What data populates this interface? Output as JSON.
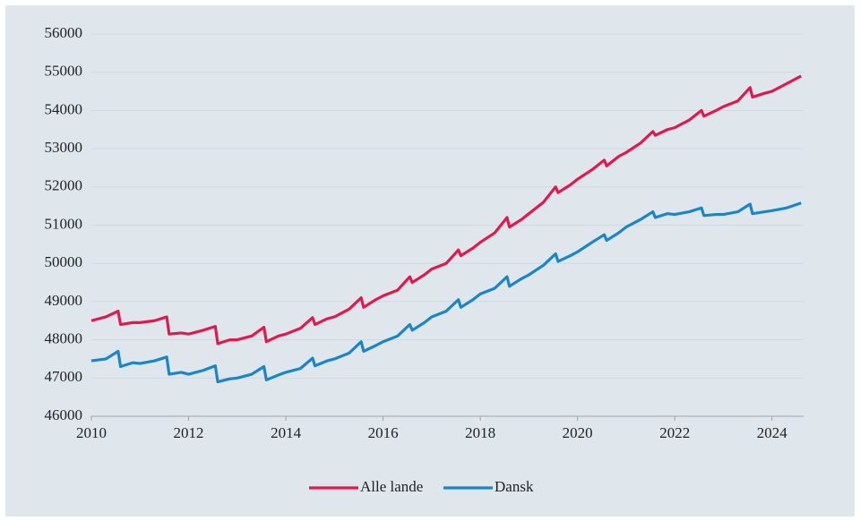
{
  "chart_data": {
    "type": "line",
    "x": [
      2010,
      2010.3,
      2010.55,
      2010.6,
      2010.85,
      2011,
      2011.3,
      2011.55,
      2011.6,
      2011.85,
      2012,
      2012.3,
      2012.55,
      2012.6,
      2012.85,
      2013,
      2013.3,
      2013.55,
      2013.6,
      2013.85,
      2014,
      2014.3,
      2014.55,
      2014.6,
      2014.85,
      2015,
      2015.3,
      2015.55,
      2015.6,
      2015.85,
      2016,
      2016.3,
      2016.55,
      2016.6,
      2016.85,
      2017,
      2017.3,
      2017.55,
      2017.6,
      2017.85,
      2018,
      2018.3,
      2018.55,
      2018.6,
      2018.85,
      2019,
      2019.3,
      2019.55,
      2019.6,
      2019.85,
      2020,
      2020.3,
      2020.55,
      2020.6,
      2020.85,
      2021,
      2021.3,
      2021.55,
      2021.6,
      2021.85,
      2022,
      2022.3,
      2022.55,
      2022.6,
      2022.85,
      2023,
      2023.3,
      2023.55,
      2023.6,
      2023.85,
      2024,
      2024.3,
      2024.6
    ],
    "series": [
      {
        "name": "Alle lande",
        "color": "#e0194f",
        "values": [
          48500,
          48600,
          48750,
          48400,
          48450,
          48450,
          48500,
          48600,
          48150,
          48180,
          48150,
          48250,
          48350,
          47900,
          48000,
          48000,
          48100,
          48330,
          47950,
          48100,
          48150,
          48300,
          48580,
          48400,
          48550,
          48600,
          48800,
          49100,
          48850,
          49050,
          49150,
          49300,
          49650,
          49500,
          49700,
          49850,
          50000,
          50350,
          50200,
          50400,
          50550,
          50800,
          51200,
          50950,
          51150,
          51300,
          51600,
          52000,
          51850,
          52050,
          52200,
          52450,
          52700,
          52550,
          52800,
          52900,
          53150,
          53450,
          53350,
          53500,
          53550,
          53750,
          54000,
          53850,
          54000,
          54100,
          54250,
          54600,
          54350,
          54450,
          54500,
          54700,
          54900
        ]
      },
      {
        "name": "Dansk",
        "color": "#1a86c7",
        "values": [
          47450,
          47500,
          47700,
          47300,
          47400,
          47380,
          47450,
          47550,
          47100,
          47150,
          47100,
          47200,
          47320,
          46900,
          46980,
          47000,
          47100,
          47300,
          46950,
          47080,
          47150,
          47250,
          47520,
          47320,
          47450,
          47500,
          47650,
          47950,
          47700,
          47850,
          47950,
          48100,
          48400,
          48250,
          48450,
          48600,
          48750,
          49050,
          48850,
          49050,
          49200,
          49350,
          49650,
          49400,
          49600,
          49700,
          49950,
          50250,
          50050,
          50200,
          50300,
          50550,
          50750,
          50600,
          50800,
          50950,
          51150,
          51350,
          51200,
          51300,
          51280,
          51350,
          51450,
          51250,
          51280,
          51280,
          51350,
          51550,
          51300,
          51350,
          51380,
          51450,
          51580
        ]
      }
    ],
    "xlim": [
      2010,
      2024.65
    ],
    "xticks": [
      2010,
      2012,
      2014,
      2016,
      2018,
      2020,
      2022,
      2024
    ],
    "ylim": [
      46000,
      56000
    ],
    "yticks": [
      46000,
      47000,
      48000,
      49000,
      50000,
      51000,
      52000,
      53000,
      54000,
      55000,
      56000
    ],
    "grid": true
  }
}
